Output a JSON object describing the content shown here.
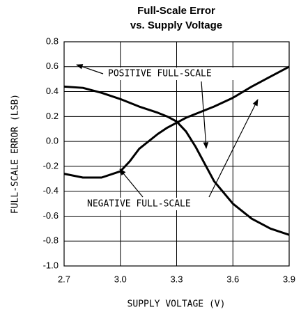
{
  "chart_data": {
    "type": "line",
    "title": "Full-Scale Error",
    "subtitle": "vs. Supply Voltage",
    "x_label": "SUPPLY VOLTAGE (V)",
    "y_label": "FULL-SCALE ERROR (LSB)",
    "x": [
      2.7,
      2.8,
      2.9,
      3.0,
      3.05,
      3.1,
      3.2,
      3.25,
      3.3,
      3.35,
      3.4,
      3.45,
      3.5,
      3.6,
      3.7,
      3.8,
      3.9
    ],
    "series": [
      {
        "name": "POSITIVE FULL-SCALE",
        "color": "#000000",
        "values": [
          0.44,
          0.43,
          0.39,
          0.34,
          0.31,
          0.28,
          0.23,
          0.2,
          0.16,
          0.08,
          -0.04,
          -0.18,
          -0.32,
          -0.5,
          -0.62,
          -0.7,
          -0.75
        ]
      },
      {
        "name": "NEGATIVE FULL-SCALE",
        "color": "#000000",
        "values": [
          -0.26,
          -0.29,
          -0.29,
          -0.24,
          -0.16,
          -0.06,
          0.06,
          0.11,
          0.15,
          0.19,
          0.22,
          0.25,
          0.28,
          0.35,
          0.44,
          0.52,
          0.6
        ]
      }
    ],
    "xlim": [
      2.7,
      3.9
    ],
    "xticks": [
      2.7,
      {
        "value": 3.0,
        "label": "3.0"
      },
      3.3,
      3.6,
      3.9
    ],
    "ylim": [
      -1.0,
      0.8
    ],
    "yticks": [
      0.8,
      0.6,
      0.4,
      0.2,
      {
        "value": 0,
        "label": "0.0"
      },
      -0.2,
      -0.4,
      -0.6,
      -0.8,
      {
        "value": -1.0,
        "label": "-1.0"
      }
    ],
    "grid": true
  }
}
